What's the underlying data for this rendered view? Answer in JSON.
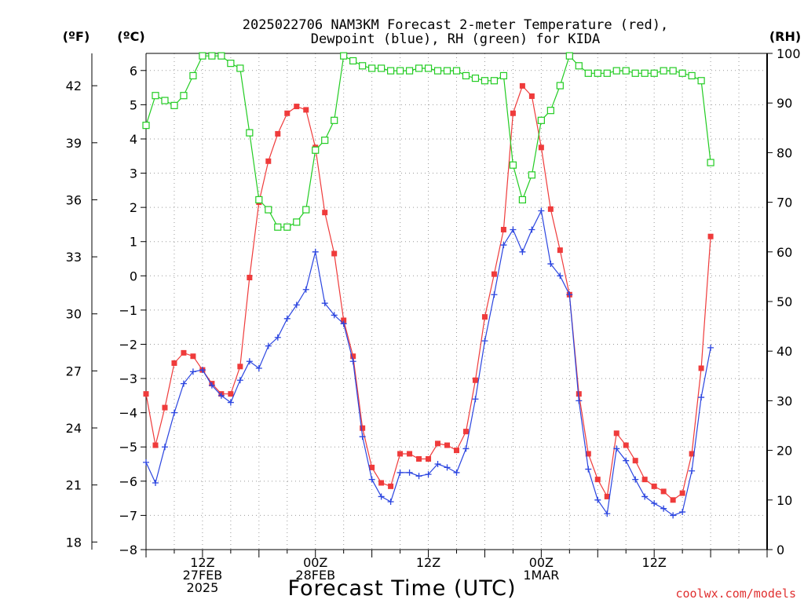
{
  "title_line1": "2025022706 NAM3KM Forecast 2-meter Temperature (red),",
  "title_line2": "Dewpoint (blue), RH (green) for KIDA",
  "unit_f": "(ºF)",
  "unit_c": "(ºC)",
  "unit_rh": "(RH)",
  "xlabel": "Forecast Time (UTC)",
  "credit": "coolwx.com/models",
  "colors": {
    "temp": "#ef3b3b",
    "dewpoint": "#2b45e0",
    "rh": "#22cc22",
    "grid": "#9a9a9a",
    "credit": "#e03030"
  },
  "chart_data": {
    "type": "line",
    "x_units": "forecast hours from 2025-02-27 06Z",
    "xlim": [
      0,
      66
    ],
    "ylim_c": [
      -8,
      6.5
    ],
    "ylim_rh": [
      0,
      100
    ],
    "f_ticks": [
      "18",
      "21",
      "24",
      "27",
      "30",
      "33",
      "36",
      "39",
      "42"
    ],
    "c_ticks": [
      "−8",
      "−7",
      "−6",
      "−5",
      "−4",
      "−3",
      "−2",
      "−1",
      "0",
      "1",
      "2",
      "3",
      "4",
      "5",
      "6"
    ],
    "rh_ticks": [
      "0",
      "10",
      "20",
      "30",
      "40",
      "50",
      "60",
      "70",
      "80",
      "90",
      "100"
    ],
    "x_ticks": [
      {
        "x": 6,
        "lines": [
          "12Z",
          "27FEB",
          "2025"
        ]
      },
      {
        "x": 18,
        "lines": [
          "00Z",
          "28FEB"
        ]
      },
      {
        "x": 30,
        "lines": [
          "12Z"
        ]
      },
      {
        "x": 42,
        "lines": [
          "00Z",
          "1MAR"
        ]
      },
      {
        "x": 54,
        "lines": [
          "12Z"
        ]
      }
    ],
    "grid": true,
    "series": [
      {
        "name": "Temperature",
        "axis": "c",
        "marker": "filled-square",
        "x": [
          0,
          1,
          2,
          3,
          4,
          5,
          6,
          7,
          8,
          9,
          10,
          11,
          12,
          13,
          14,
          15,
          16,
          17,
          18,
          19,
          20,
          21,
          22,
          23,
          24,
          25,
          26,
          27,
          28,
          29,
          30,
          31,
          32,
          33,
          34,
          35,
          36,
          37,
          38,
          39,
          40,
          41,
          42,
          43,
          44,
          45,
          46,
          47,
          48,
          49,
          50,
          51,
          52,
          53,
          54,
          55,
          56,
          57,
          58,
          59,
          60
        ],
        "values": [
          -3.45,
          -4.95,
          -3.85,
          -2.55,
          -2.25,
          -2.35,
          -2.75,
          -3.15,
          -3.45,
          -3.45,
          -2.65,
          -0.05,
          2.15,
          3.35,
          4.15,
          4.75,
          4.95,
          4.85,
          3.75,
          1.85,
          0.65,
          -1.3,
          -2.35,
          -4.45,
          -5.6,
          -6.05,
          -6.15,
          -5.2,
          -5.2,
          -5.35,
          -5.35,
          -4.9,
          -4.95,
          -5.1,
          -4.55,
          -3.05,
          -1.2,
          0.05,
          1.35,
          4.75,
          5.55,
          5.25,
          3.75,
          1.95,
          0.75,
          -0.55,
          -3.45,
          -5.2,
          -5.95,
          -6.45,
          -4.6,
          -4.95,
          -5.4,
          -5.95,
          -6.15,
          -6.3,
          -6.55,
          -6.35,
          -5.2,
          -2.7,
          1.15
        ]
      },
      {
        "name": "Dewpoint",
        "axis": "c",
        "marker": "plus",
        "x": [
          0,
          1,
          2,
          3,
          4,
          5,
          6,
          7,
          8,
          9,
          10,
          11,
          12,
          13,
          14,
          15,
          16,
          17,
          18,
          19,
          20,
          21,
          22,
          23,
          24,
          25,
          26,
          27,
          28,
          29,
          30,
          31,
          32,
          33,
          34,
          35,
          36,
          37,
          38,
          39,
          40,
          41,
          42,
          43,
          44,
          45,
          46,
          47,
          48,
          49,
          50,
          51,
          52,
          53,
          54,
          55,
          56,
          57,
          58,
          59,
          60
        ],
        "values": [
          -5.45,
          -6.05,
          -5.0,
          -4.0,
          -3.15,
          -2.8,
          -2.75,
          -3.2,
          -3.5,
          -3.7,
          -3.05,
          -2.5,
          -2.7,
          -2.05,
          -1.8,
          -1.25,
          -0.85,
          -0.4,
          0.7,
          -0.8,
          -1.15,
          -1.4,
          -2.5,
          -4.7,
          -5.95,
          -6.45,
          -6.6,
          -5.75,
          -5.75,
          -5.85,
          -5.8,
          -5.5,
          -5.6,
          -5.75,
          -5.05,
          -3.6,
          -1.9,
          -0.55,
          0.9,
          1.35,
          0.7,
          1.35,
          1.9,
          0.35,
          0.0,
          -0.55,
          -3.65,
          -5.65,
          -6.55,
          -6.95,
          -5.05,
          -5.4,
          -5.95,
          -6.45,
          -6.65,
          -6.8,
          -7.0,
          -6.9,
          -5.7,
          -3.55,
          -2.1
        ]
      },
      {
        "name": "RH",
        "axis": "rh",
        "marker": "open-square",
        "x": [
          0,
          1,
          2,
          3,
          4,
          5,
          6,
          7,
          8,
          9,
          10,
          11,
          12,
          13,
          14,
          15,
          16,
          17,
          18,
          19,
          20,
          21,
          22,
          23,
          24,
          25,
          26,
          27,
          28,
          29,
          30,
          31,
          32,
          33,
          34,
          35,
          36,
          37,
          38,
          39,
          40,
          41,
          42,
          43,
          44,
          45,
          46,
          47,
          48,
          49,
          50,
          51,
          52,
          53,
          54,
          55,
          56,
          57,
          58,
          59,
          60
        ],
        "values": [
          85.5,
          91.5,
          90.5,
          89.5,
          91.5,
          95.5,
          99.5,
          99.5,
          99.5,
          98,
          97,
          84,
          70.5,
          68.5,
          65,
          65,
          66,
          68.5,
          80.5,
          82.5,
          86.5,
          99.5,
          98.5,
          97.5,
          97,
          97,
          96.5,
          96.5,
          96.5,
          97,
          97,
          96.5,
          96.5,
          96.5,
          95.5,
          95,
          94.5,
          94.5,
          95.5,
          77.5,
          70.5,
          75.5,
          86.5,
          88.5,
          93.5,
          99.5,
          97.5,
          96,
          96,
          96,
          96.5,
          96.5,
          96,
          96,
          96,
          96.5,
          96.5,
          96,
          95.5,
          94.5,
          78
        ]
      }
    ]
  }
}
